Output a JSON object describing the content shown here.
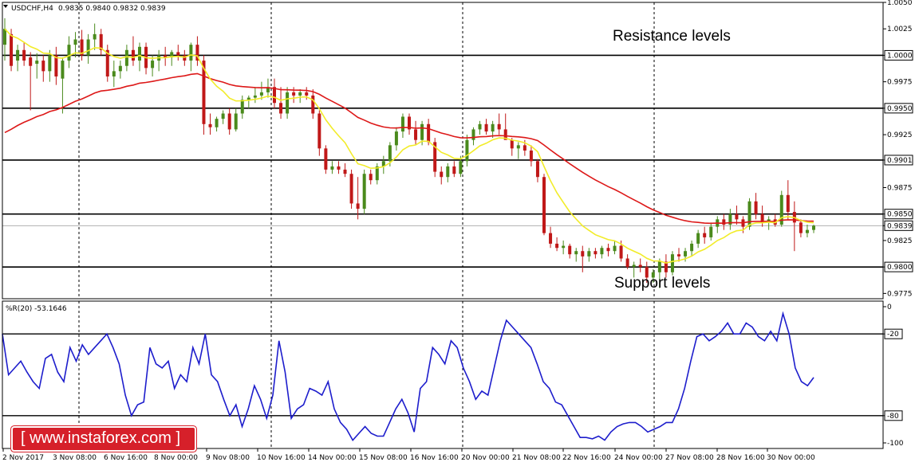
{
  "header": {
    "symbol": "USDCHF,H4",
    "ohlc": "0.9835 0.9840 0.9832 0.9839",
    "indicator": "%R(20) -53.1646"
  },
  "logo": {
    "text": "[ www.instaforex.com ]",
    "color": "#d6202a"
  },
  "colors": {
    "bull": "#4a8a1c",
    "bear": "#c01818",
    "ma_fast": "#f2ec2a",
    "ma_slow": "#dd1818",
    "wpr": "#1d1dcc"
  },
  "chart_data": [
    {
      "type": "candlestick",
      "title": "",
      "y_ticks": [
        "1.0050",
        "1.0025",
        "1.0000",
        "0.9975",
        "0.9950",
        "0.9925",
        "0.9901",
        "0.9875",
        "0.9850",
        "0.9839",
        "0.9825",
        "0.9800",
        "0.9775"
      ],
      "ylim": [
        0.977,
        1.005
      ],
      "x_ticks": [
        "2 Nov 2017",
        "3 Nov 08:00",
        "6 Nov 16:00",
        "8 Nov 00:00",
        "9 Nov 08:00",
        "10 Nov 16:00",
        "14 Nov 00:00",
        "15 Nov 08:00",
        "16 Nov 16:00",
        "20 Nov 00:00",
        "21 Nov 08:00",
        "22 Nov 16:00",
        "24 Nov 00:00",
        "27 Nov 08:00",
        "28 Nov 16:00",
        "30 Nov 00:00"
      ],
      "current_price": 0.9839,
      "horizontal_levels": [
        1.0,
        0.995,
        0.9901,
        0.985,
        0.98
      ],
      "annotations": [
        "Resistance levels",
        "Support levels"
      ],
      "ohlc_approx": [
        [
          1.001,
          1.0035,
          0.9995,
          1.0025
        ],
        [
          1.002,
          1.0025,
          0.9985,
          0.999
        ],
        [
          0.9995,
          1.001,
          0.9985,
          1.0005
        ],
        [
          1.0005,
          1.0012,
          0.999,
          0.9995
        ],
        [
          0.9998,
          1.0003,
          0.9948,
          0.999
        ],
        [
          0.9992,
          1.0002,
          0.9978,
          0.9995
        ],
        [
          0.9995,
          1.0,
          0.9975,
          0.9985
        ],
        [
          0.9985,
          1.0005,
          0.9975,
          1.0
        ],
        [
          1.0,
          1.0008,
          0.9972,
          0.998
        ],
        [
          0.9978,
          0.9998,
          0.9945,
          0.9995
        ],
        [
          0.9995,
          1.0018,
          0.9988,
          1.001
        ],
        [
          1.001,
          1.0022,
          0.9998,
          1.0015
        ],
        [
          1.0015,
          1.0024,
          0.9995,
          1.0
        ],
        [
          1.0,
          1.002,
          0.9992,
          1.0015
        ],
        [
          1.0015,
          1.003,
          1.0005,
          1.002
        ],
        [
          1.002,
          1.0025,
          1.0,
          1.0005
        ],
        [
          1.0005,
          1.001,
          0.9975,
          0.998
        ],
        [
          0.998,
          0.9995,
          0.997,
          0.9985
        ],
        [
          0.9985,
          0.9995,
          0.9978,
          0.999
        ],
        [
          0.999,
          1.001,
          0.9985,
          1.0005
        ],
        [
          1.0005,
          1.0018,
          0.999,
          0.9995
        ],
        [
          0.9995,
          1.0012,
          0.9985,
          1.0008
        ],
        [
          1.0008,
          1.0012,
          0.9982,
          0.9988
        ],
        [
          0.9988,
          1.0,
          0.998,
          0.9995
        ],
        [
          0.9995,
          1.0005,
          0.9985,
          1.0
        ],
        [
          1.0,
          1.0008,
          0.999,
          0.9998
        ],
        [
          0.9998,
          1.0005,
          0.999,
          1.0003
        ],
        [
          1.0003,
          1.001,
          0.9995,
          1.0
        ],
        [
          1.0,
          1.0005,
          0.999,
          0.9995
        ],
        [
          0.9995,
          1.0012,
          0.9985,
          1.001
        ],
        [
          1.001,
          1.0018,
          0.999,
          0.9995
        ],
        [
          0.9995,
          1.0,
          0.9925,
          0.9935
        ],
        [
          0.9935,
          0.9945,
          0.9925,
          0.9932
        ],
        [
          0.9932,
          0.9942,
          0.9928,
          0.994
        ],
        [
          0.994,
          0.9948,
          0.9935,
          0.9945
        ],
        [
          0.9945,
          0.995,
          0.9925,
          0.993
        ],
        [
          0.993,
          0.995,
          0.9928,
          0.9945
        ],
        [
          0.9945,
          0.9962,
          0.994,
          0.9958
        ],
        [
          0.9958,
          0.9962,
          0.995,
          0.996
        ],
        [
          0.996,
          0.997,
          0.9955,
          0.9962
        ],
        [
          0.9962,
          0.9975,
          0.9958,
          0.9965
        ],
        [
          0.9965,
          0.9978,
          0.996,
          0.997
        ],
        [
          0.997,
          0.9978,
          0.995,
          0.9955
        ],
        [
          0.9955,
          0.997,
          0.994,
          0.9945
        ],
        [
          0.9945,
          0.997,
          0.994,
          0.9965
        ],
        [
          0.9965,
          0.997,
          0.9955,
          0.9962
        ],
        [
          0.9962,
          0.9968,
          0.9955,
          0.9965
        ],
        [
          0.9965,
          0.997,
          0.9958,
          0.9962
        ],
        [
          0.9962,
          0.9968,
          0.994,
          0.9945
        ],
        [
          0.9945,
          0.9948,
          0.9905,
          0.9912
        ],
        [
          0.9912,
          0.9915,
          0.9888,
          0.9892
        ],
        [
          0.9892,
          0.99,
          0.9888,
          0.9895
        ],
        [
          0.9895,
          0.99,
          0.9888,
          0.9892
        ],
        [
          0.9892,
          0.9898,
          0.9885,
          0.9888
        ],
        [
          0.9888,
          0.9892,
          0.9855,
          0.986
        ],
        [
          0.986,
          0.9885,
          0.9845,
          0.9855
        ],
        [
          0.9855,
          0.9892,
          0.985,
          0.9888
        ],
        [
          0.9888,
          0.9892,
          0.9878,
          0.9882
        ],
        [
          0.9882,
          0.9898,
          0.9878,
          0.9895
        ],
        [
          0.9895,
          0.9905,
          0.9888,
          0.99
        ],
        [
          0.99,
          0.9918,
          0.9895,
          0.9915
        ],
        [
          0.9915,
          0.9932,
          0.991,
          0.9928
        ],
        [
          0.9928,
          0.9945,
          0.9922,
          0.9942
        ],
        [
          0.9942,
          0.9945,
          0.9925,
          0.993
        ],
        [
          0.993,
          0.9938,
          0.9915,
          0.992
        ],
        [
          0.992,
          0.9938,
          0.9915,
          0.9935
        ],
        [
          0.9935,
          0.994,
          0.9915,
          0.9918
        ],
        [
          0.9918,
          0.9922,
          0.9885,
          0.989
        ],
        [
          0.989,
          0.9895,
          0.9878,
          0.9885
        ],
        [
          0.9885,
          0.9898,
          0.988,
          0.9895
        ],
        [
          0.9895,
          0.99,
          0.9885,
          0.9888
        ],
        [
          0.9888,
          0.9905,
          0.9885,
          0.99
        ],
        [
          0.99,
          0.9925,
          0.9895,
          0.992
        ],
        [
          0.992,
          0.9932,
          0.9915,
          0.993
        ],
        [
          0.993,
          0.9938,
          0.9925,
          0.9935
        ],
        [
          0.9935,
          0.994,
          0.9925,
          0.9928
        ],
        [
          0.9928,
          0.9938,
          0.9922,
          0.9935
        ],
        [
          0.9935,
          0.9945,
          0.9925,
          0.993
        ],
        [
          0.993,
          0.9945,
          0.9925,
          0.992
        ],
        [
          0.992,
          0.9922,
          0.9905,
          0.9912
        ],
        [
          0.9912,
          0.9918,
          0.9902,
          0.9915
        ],
        [
          0.9915,
          0.992,
          0.9905,
          0.991
        ],
        [
          0.991,
          0.9915,
          0.9895,
          0.99
        ],
        [
          0.99,
          0.9902,
          0.988,
          0.9885
        ],
        [
          0.9885,
          0.9888,
          0.983,
          0.9832
        ],
        [
          0.9832,
          0.9838,
          0.9818,
          0.9822
        ],
        [
          0.9822,
          0.9828,
          0.9815,
          0.9818
        ],
        [
          0.9818,
          0.9825,
          0.9812,
          0.982
        ],
        [
          0.982,
          0.9822,
          0.9808,
          0.9812
        ],
        [
          0.9812,
          0.9818,
          0.9805,
          0.9815
        ],
        [
          0.9815,
          0.982,
          0.9795,
          0.981
        ],
        [
          0.981,
          0.9818,
          0.9805,
          0.9815
        ],
        [
          0.9815,
          0.9818,
          0.9808,
          0.9812
        ],
        [
          0.9812,
          0.982,
          0.9808,
          0.9818
        ],
        [
          0.9818,
          0.9822,
          0.981,
          0.9815
        ],
        [
          0.9815,
          0.9825,
          0.9812,
          0.982
        ],
        [
          0.982,
          0.9825,
          0.9805,
          0.9808
        ],
        [
          0.9808,
          0.9812,
          0.9798,
          0.98
        ],
        [
          0.98,
          0.9805,
          0.979,
          0.9802
        ],
        [
          0.9802,
          0.9808,
          0.9795,
          0.98
        ],
        [
          0.98,
          0.9805,
          0.9785,
          0.979
        ],
        [
          0.979,
          0.9798,
          0.9785,
          0.9795
        ],
        [
          0.9795,
          0.9808,
          0.978,
          0.9805
        ],
        [
          0.9805,
          0.9812,
          0.979,
          0.9795
        ],
        [
          0.9795,
          0.9815,
          0.9792,
          0.9812
        ],
        [
          0.9812,
          0.9818,
          0.9805,
          0.981
        ],
        [
          0.981,
          0.9818,
          0.9805,
          0.9815
        ],
        [
          0.9815,
          0.9825,
          0.981,
          0.9822
        ],
        [
          0.9822,
          0.9835,
          0.9818,
          0.9832
        ],
        [
          0.9832,
          0.9838,
          0.9822,
          0.9828
        ],
        [
          0.9828,
          0.9842,
          0.9825,
          0.9838
        ],
        [
          0.9838,
          0.9848,
          0.9832,
          0.9845
        ],
        [
          0.9845,
          0.985,
          0.9835,
          0.984
        ],
        [
          0.984,
          0.9855,
          0.9835,
          0.985
        ],
        [
          0.985,
          0.9858,
          0.984,
          0.9845
        ],
        [
          0.9845,
          0.9848,
          0.9832,
          0.9838
        ],
        [
          0.9838,
          0.9865,
          0.9835,
          0.9862
        ],
        [
          0.9862,
          0.987,
          0.9845,
          0.985
        ],
        [
          0.985,
          0.9858,
          0.9838,
          0.9842
        ],
        [
          0.9842,
          0.9848,
          0.9835,
          0.9845
        ],
        [
          0.9845,
          0.985,
          0.9838,
          0.984
        ],
        [
          0.984,
          0.9872,
          0.9838,
          0.9868
        ],
        [
          0.9868,
          0.9882,
          0.9845,
          0.9852
        ],
        [
          0.9852,
          0.9862,
          0.9815,
          0.9842
        ],
        [
          0.9842,
          0.9845,
          0.9828,
          0.9832
        ],
        [
          0.9832,
          0.984,
          0.9828,
          0.9835
        ],
        [
          0.9835,
          0.984,
          0.9832,
          0.9839
        ]
      ]
    },
    {
      "type": "line",
      "title": "%R(20)",
      "y_ticks": [
        "0",
        "-20",
        "-80",
        "-100"
      ],
      "ylim": [
        -100,
        0
      ],
      "current_value": -53.1646,
      "levels": [
        -20,
        -80
      ],
      "values": [
        -20,
        -50,
        -45,
        -40,
        -48,
        -55,
        -60,
        -38,
        -35,
        -48,
        -55,
        -30,
        -40,
        -28,
        -35,
        -30,
        -25,
        -20,
        -30,
        -42,
        -65,
        -80,
        -72,
        -70,
        -30,
        -42,
        -45,
        -40,
        -60,
        -50,
        -55,
        -30,
        -42,
        -20,
        -50,
        -55,
        -68,
        -80,
        -72,
        -88,
        -75,
        -58,
        -68,
        -82,
        -65,
        -25,
        -48,
        -82,
        -75,
        -72,
        -60,
        -62,
        -65,
        -55,
        -75,
        -85,
        -90,
        -98,
        -93,
        -88,
        -93,
        -95,
        -95,
        -85,
        -75,
        -68,
        -78,
        -92,
        -60,
        -55,
        -30,
        -35,
        -42,
        -25,
        -30,
        -45,
        -55,
        -68,
        -62,
        -65,
        -45,
        -25,
        -10,
        -15,
        -20,
        -25,
        -30,
        -42,
        -55,
        -60,
        -70,
        -72,
        -80,
        -88,
        -96,
        -96,
        -97,
        -95,
        -98,
        -92,
        -88,
        -86,
        -85,
        -85,
        -88,
        -92,
        -90,
        -88,
        -85,
        -85,
        -75,
        -60,
        -40,
        -22,
        -20,
        -25,
        -22,
        -18,
        -12,
        -20,
        -20,
        -12,
        -15,
        -22,
        -25,
        -18,
        -25,
        -5,
        -20,
        -45,
        -55,
        -58,
        -52
      ]
    }
  ]
}
